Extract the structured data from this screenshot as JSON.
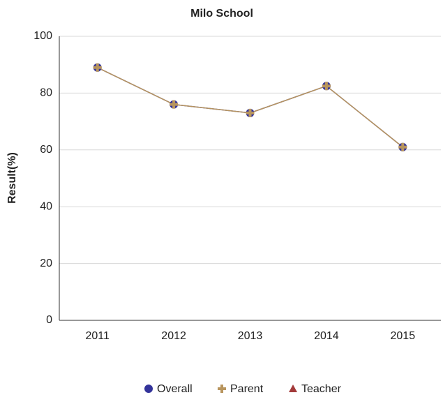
{
  "chart_data": {
    "type": "line",
    "title": "Milo School",
    "y_label": "Result(%)",
    "categories": [
      "2011",
      "2012",
      "2013",
      "2014",
      "2015"
    ],
    "series": [
      {
        "name": "Overall",
        "color": "#33339a",
        "marker": "circle",
        "values": [
          89,
          76,
          73,
          82.5,
          61
        ]
      },
      {
        "name": "Parent",
        "color": "#b8955e",
        "marker": "plus",
        "values": [
          89,
          76,
          73,
          82.5,
          61
        ]
      },
      {
        "name": "Teacher",
        "color": "#a33a3a",
        "marker": "triangle",
        "values": [
          null,
          null,
          null,
          null,
          null
        ]
      }
    ],
    "ylim": [
      0,
      100
    ],
    "yticks": [
      0,
      20,
      40,
      60,
      80,
      100
    ],
    "grid": true,
    "legend": "bottom"
  }
}
